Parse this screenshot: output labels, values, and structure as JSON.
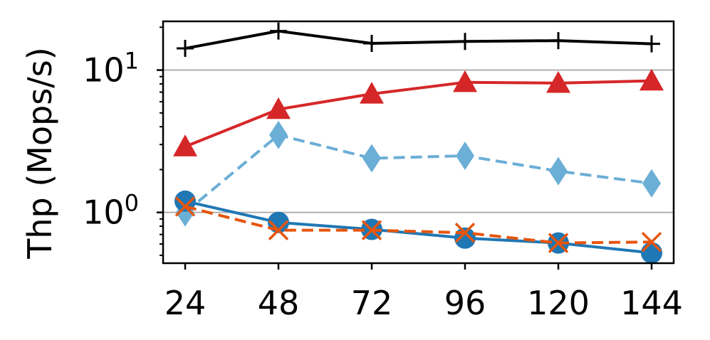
{
  "chart_data": {
    "type": "line",
    "title": "",
    "xlabel": "",
    "ylabel": "Thp (Mops/s)",
    "yscale": "log",
    "ylim": [
      0.44,
      22
    ],
    "x": [
      24,
      48,
      72,
      96,
      120,
      144
    ],
    "x_tick_labels": [
      "24",
      "48",
      "72",
      "96",
      "120",
      "144"
    ],
    "y_ticks": [
      {
        "value": 1,
        "base": "10",
        "exp": "0"
      },
      {
        "value": 10,
        "base": "10",
        "exp": "1"
      }
    ],
    "grid": "horizontal at major ticks",
    "legend": "none",
    "series": [
      {
        "color": "#000000",
        "marker": "plus",
        "dash": "solid",
        "values": [
          14.2,
          18.8,
          15.4,
          15.9,
          16.1,
          15.3
        ]
      },
      {
        "color": "#d62728",
        "marker": "triangle",
        "dash": "solid",
        "values": [
          2.9,
          5.3,
          6.8,
          8.2,
          8.1,
          8.4
        ]
      },
      {
        "color": "#6baed6",
        "marker": "diamond",
        "dash": "dashed",
        "values": [
          1.0,
          3.5,
          2.4,
          2.5,
          1.95,
          1.6
        ]
      },
      {
        "color": "#1f77b4",
        "marker": "circle",
        "dash": "solid",
        "values": [
          1.2,
          0.85,
          0.76,
          0.66,
          0.61,
          0.52
        ]
      },
      {
        "color": "#e6550d",
        "marker": "x",
        "dash": "dashed",
        "values": [
          1.1,
          0.75,
          0.75,
          0.72,
          0.61,
          0.62
        ]
      }
    ]
  }
}
